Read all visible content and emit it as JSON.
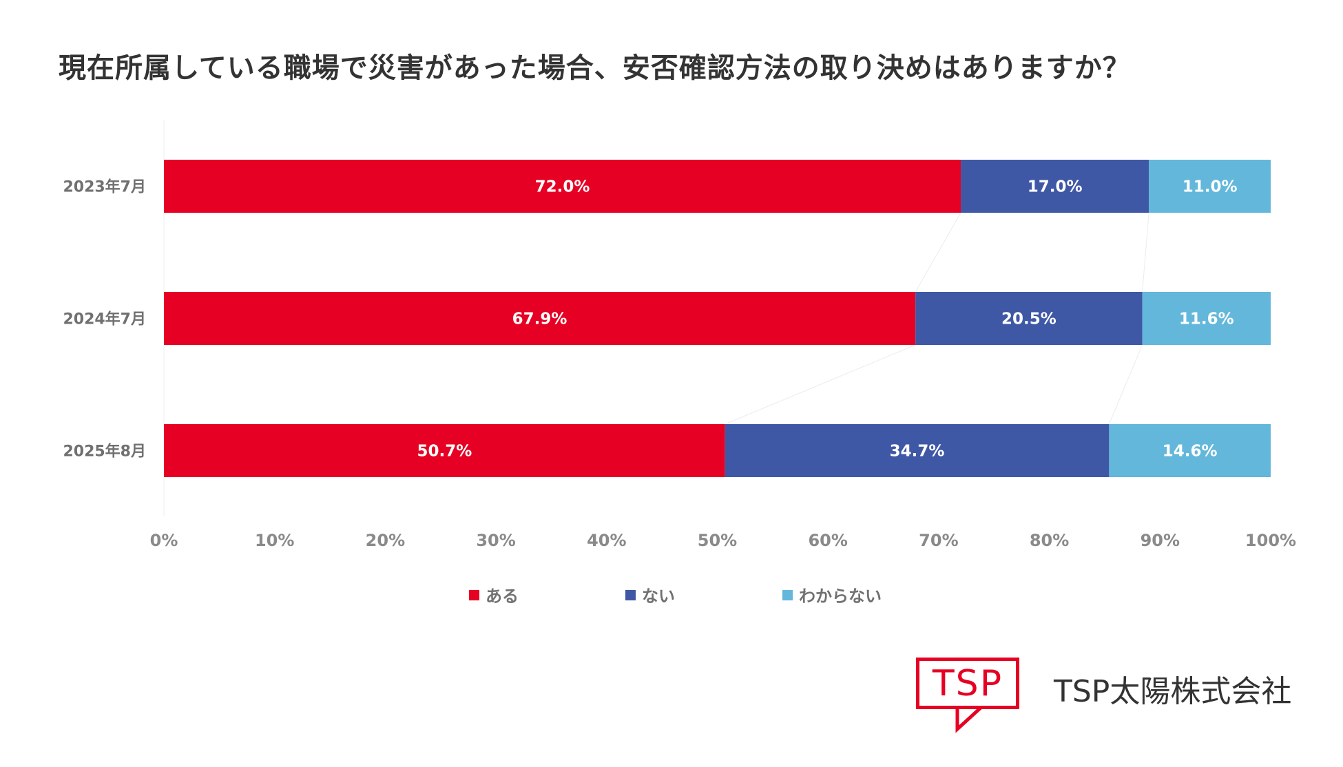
{
  "title": "現在所属している職場で災害があった場合、安否確認方法の取り決めはありますか？",
  "chart_data": {
    "type": "bar",
    "orientation": "horizontal",
    "stacked": true,
    "categories": [
      "2023年7月",
      "2024年7月",
      "2025年8月"
    ],
    "series": [
      {
        "name": "ある",
        "color": "#e60023",
        "values": [
          72.0,
          67.9,
          50.7
        ],
        "labels": [
          "72.0%",
          "67.9%",
          "50.7%"
        ]
      },
      {
        "name": "ない",
        "color": "#3f58a6",
        "values": [
          17.0,
          20.5,
          34.7
        ],
        "labels": [
          "17.0%",
          "20.5%",
          "34.7%"
        ]
      },
      {
        "name": "わからない",
        "color": "#63b7db",
        "values": [
          11.0,
          11.6,
          14.6
        ],
        "labels": [
          "11.0%",
          "11.6%",
          "14.6%"
        ]
      }
    ],
    "xlim": [
      0,
      100
    ],
    "xticks": [
      "0%",
      "10%",
      "20%",
      "30%",
      "40%",
      "50%",
      "60%",
      "70%",
      "80%",
      "90%",
      "100%"
    ],
    "legend_position": "bottom",
    "grid": false
  },
  "logo": {
    "mark_text": "TSP",
    "company_name": "TSP太陽株式会社",
    "brand_color": "#e60023"
  }
}
